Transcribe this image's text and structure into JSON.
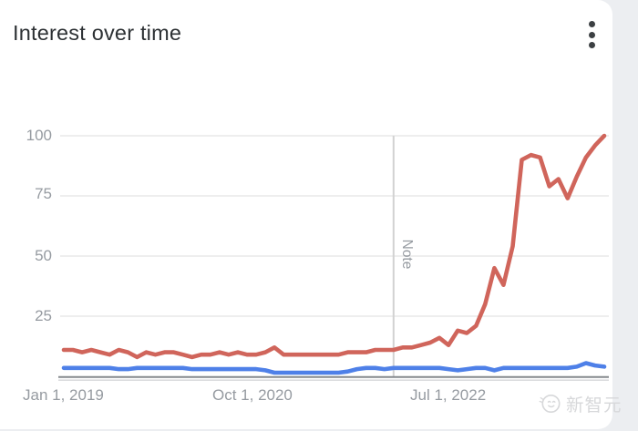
{
  "header": {
    "title": "Interest over time",
    "menu_icon": "kebab-menu"
  },
  "chart_data": {
    "type": "line",
    "title": "Interest over time",
    "xlabel": "",
    "ylabel": "",
    "x_start": "Jan 2019",
    "x_end": "Dec 2023",
    "point_interval": "monthly",
    "x_tick_labels": [
      "Jan 1, 2019",
      "Oct 1, 2020",
      "Jul 1, 2022"
    ],
    "x_tick_indices": [
      0,
      21,
      42
    ],
    "y_ticks": [
      100,
      75,
      50,
      25
    ],
    "ylim": [
      0,
      100
    ],
    "grid": true,
    "legend": "none",
    "annotation": {
      "label": "Note",
      "x_index": 36
    },
    "series": [
      {
        "name": "series-red",
        "color": "#d0655b",
        "values": [
          11,
          11,
          10,
          11,
          10,
          9,
          11,
          10,
          8,
          10,
          9,
          10,
          10,
          9,
          8,
          9,
          9,
          10,
          9,
          10,
          9,
          9,
          10,
          12,
          9,
          9,
          9,
          9,
          9,
          9,
          9,
          10,
          10,
          10,
          11,
          11,
          11,
          12,
          12,
          13,
          14,
          16,
          13,
          19,
          18,
          21,
          30,
          45,
          38,
          54,
          90,
          92,
          91,
          79,
          82,
          74,
          83,
          91,
          96,
          100
        ]
      },
      {
        "name": "series-blue",
        "color": "#4e80e8",
        "values": [
          3.5,
          3.5,
          3.5,
          3.5,
          3.5,
          3.5,
          3,
          3,
          3.5,
          3.5,
          3.5,
          3.5,
          3.5,
          3.5,
          3,
          3,
          3,
          3,
          3,
          3,
          3,
          3,
          2.5,
          1.5,
          1.5,
          1.5,
          1.5,
          1.5,
          1.5,
          1.5,
          1.5,
          2,
          3,
          3.5,
          3.5,
          3,
          3.5,
          3.5,
          3.5,
          3.5,
          3.5,
          3.5,
          3,
          2.5,
          3,
          3.5,
          3.5,
          2.5,
          3.5,
          3.5,
          3.5,
          3.5,
          3.5,
          3.5,
          3.5,
          3.5,
          4,
          5.5,
          4.5,
          4
        ]
      }
    ]
  },
  "watermark": {
    "text": "新智元",
    "icon": "smiley-face-logo"
  },
  "colors": {
    "card_background": "#ffffff",
    "page_background": "#eceef1",
    "gridline": "#e8e8e8",
    "axis_line": "#85898d",
    "tick_label": "#969ba1",
    "note_line": "#d2d2d2",
    "watermark": "#d7d8da"
  }
}
